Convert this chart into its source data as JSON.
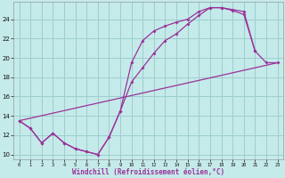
{
  "xlabel": "Windchill (Refroidissement éolien,°C)",
  "bg_color": "#c5eaea",
  "line_color": "#993399",
  "grid_color": "#9dcece",
  "xlim": [
    -0.5,
    23.5
  ],
  "ylim": [
    9.5,
    25.8
  ],
  "xticks": [
    0,
    1,
    2,
    3,
    4,
    5,
    6,
    7,
    8,
    9,
    10,
    11,
    12,
    13,
    14,
    15,
    16,
    17,
    18,
    19,
    20,
    21,
    22,
    23
  ],
  "yticks": [
    10,
    12,
    14,
    16,
    18,
    20,
    22,
    24
  ],
  "curve1_x": [
    0,
    1,
    2,
    3,
    4,
    5,
    6,
    7,
    8,
    9,
    10,
    11,
    12,
    13,
    14,
    15,
    16,
    17,
    18,
    19,
    20,
    21,
    22,
    23
  ],
  "curve1_y": [
    13.5,
    12.7,
    11.2,
    12.2,
    11.2,
    10.6,
    10.3,
    10.0,
    11.8,
    14.5,
    17.5,
    19.0,
    20.5,
    21.8,
    22.5,
    23.5,
    24.4,
    25.2,
    25.2,
    25.0,
    24.8,
    20.7,
    19.5,
    19.5
  ],
  "curve2_x": [
    0,
    1,
    2,
    3,
    4,
    5,
    6,
    7,
    8,
    9,
    10,
    11,
    12,
    13,
    14,
    15,
    16,
    17,
    18,
    19,
    20,
    21
  ],
  "curve2_y": [
    13.5,
    12.7,
    11.2,
    12.2,
    11.2,
    10.6,
    10.3,
    10.0,
    11.8,
    14.5,
    19.5,
    21.8,
    22.8,
    23.3,
    23.7,
    24.0,
    24.8,
    25.2,
    25.2,
    24.9,
    24.5,
    20.7
  ],
  "line3_x": [
    0,
    23
  ],
  "line3_y": [
    13.5,
    19.5
  ],
  "marker": "D",
  "markersize": 2.0,
  "linewidth": 0.9
}
